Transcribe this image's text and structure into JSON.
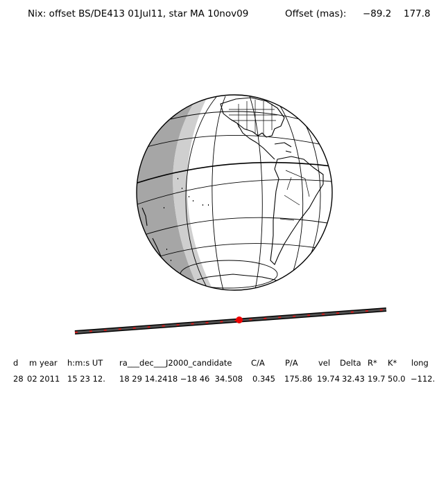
{
  "header": {
    "title": "Nix: offset BS/DE413 01Jul11, star MA 10nov09",
    "offset_label": "Offset (mas):",
    "offset_x": "−89.2",
    "offset_y": "177.8"
  },
  "colors": {
    "globe_fill": "#ffffff",
    "night_shade": "#a6a6a6",
    "twilight_shade": "#cfcfcf",
    "outline": "#000000",
    "track": "#404040",
    "track_ticks": "#d22020",
    "current_position": "#ee0000"
  },
  "table": {
    "headers": [
      "d",
      "m",
      "year",
      "h:m:s UT",
      "ra___dec___J2000_candidate",
      "C/A",
      "P/A",
      "vel",
      "Delta",
      "R*",
      "K*",
      "long"
    ],
    "values": [
      "28",
      "02",
      "2011",
      "15 23 12.",
      "18 29 14.2418 −18 46  34.508",
      "0.345",
      "175.86",
      "19.74",
      "32.43",
      "19.7",
      "50.0",
      "−112."
    ]
  }
}
